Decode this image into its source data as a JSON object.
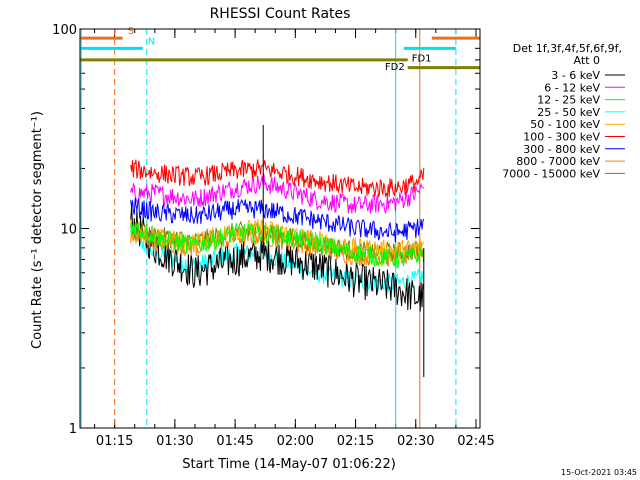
{
  "chart_data": {
    "type": "line",
    "title": "RHESSI Count Rates",
    "xlabel": "Start Time (14-May-07 01:06:22)",
    "ylabel": "Count Rate (s⁻¹ detector segment⁻¹)",
    "ylim": [
      1,
      100
    ],
    "yscale": "log",
    "xlim": [
      "01:06:22",
      "02:46:00"
    ],
    "x_ticks": [
      "01:15",
      "01:30",
      "01:45",
      "02:00",
      "02:15",
      "02:30",
      "02:45"
    ],
    "y_ticks": [
      "1",
      "10",
      "100"
    ],
    "legend_header": [
      "Det 1f,3f,4f,5f,6f,9f,",
      "Att 0"
    ],
    "legend_position": "right",
    "series": [
      {
        "name": "3 - 6 keV",
        "color": "#000000",
        "x": [
          "01:19",
          "01:25",
          "01:35",
          "01:45",
          "01:52",
          "02:05",
          "02:15",
          "02:25",
          "02:30",
          "02:32"
        ],
        "values": [
          11,
          8,
          6,
          7,
          7.5,
          6.5,
          5.5,
          5,
          4.5,
          4.5
        ]
      },
      {
        "name": "6 - 12 keV",
        "color": "#ff00ff",
        "x": [
          "01:19",
          "01:25",
          "01:35",
          "01:45",
          "01:52",
          "02:05",
          "02:15",
          "02:25",
          "02:30",
          "02:32"
        ],
        "values": [
          15,
          15,
          14,
          16,
          17,
          14,
          13,
          13.5,
          15,
          16
        ]
      },
      {
        "name": "12 - 25 keV",
        "color": "#00ff00",
        "x": [
          "01:19",
          "01:25",
          "01:35",
          "01:45",
          "01:52",
          "02:05",
          "02:15",
          "02:25",
          "02:30",
          "02:32"
        ],
        "values": [
          10.5,
          9,
          8.2,
          9.5,
          9.5,
          8.5,
          7.5,
          7,
          7.2,
          7.5
        ]
      },
      {
        "name": "25 - 50 keV",
        "color": "#00ffff",
        "x": [
          "01:19",
          "01:25",
          "01:35",
          "01:45",
          "01:52",
          "02:05",
          "02:15",
          "02:25",
          "02:30",
          "02:32"
        ],
        "values": [
          9.5,
          7.5,
          6.5,
          7.5,
          7.5,
          6,
          5.5,
          5.3,
          5.5,
          5.8
        ]
      },
      {
        "name": "50 - 100 keV",
        "color": "#ffaa00",
        "x": [
          "01:19",
          "01:25",
          "01:35",
          "01:45",
          "01:52",
          "02:05",
          "02:15",
          "02:25",
          "02:30",
          "02:32"
        ],
        "values": [
          10,
          9,
          8.5,
          9.8,
          10,
          8.8,
          8,
          7.8,
          8,
          8.3
        ]
      },
      {
        "name": "100 - 300 keV",
        "color": "#ff0000",
        "x": [
          "01:19",
          "01:25",
          "01:35",
          "01:45",
          "01:52",
          "02:05",
          "02:15",
          "02:25",
          "02:30",
          "02:32"
        ],
        "values": [
          20,
          19,
          18,
          19.5,
          20,
          17.5,
          16,
          16,
          17,
          18
        ]
      },
      {
        "name": "300 - 800 keV",
        "color": "#0000ff",
        "x": [
          "01:19",
          "01:25",
          "01:35",
          "01:45",
          "01:52",
          "02:05",
          "02:15",
          "02:25",
          "02:30",
          "02:32"
        ],
        "values": [
          13,
          12,
          11.5,
          12.5,
          12.5,
          11,
          10,
          9.5,
          10,
          10.5
        ]
      },
      {
        "name": "800 - 7000 keV",
        "color": "#ff8000",
        "x": [
          "01:19",
          "01:25",
          "01:35",
          "01:45",
          "01:52",
          "02:05",
          "02:15",
          "02:25",
          "02:30",
          "02:32"
        ],
        "values": [
          9.3,
          8.6,
          8,
          9,
          9.2,
          8,
          7.3,
          7.2,
          7.4,
          7.6
        ]
      },
      {
        "name": "7000 - 15000 keV",
        "color": "#808000",
        "x": [
          "01:19",
          "01:25",
          "01:35",
          "01:45",
          "01:52",
          "02:05",
          "02:15",
          "02:25",
          "02:30",
          "02:32"
        ],
        "values": [
          10,
          9.2,
          8.6,
          9.6,
          9.7,
          8.5,
          7.7,
          7.6,
          7.8,
          8
        ]
      }
    ],
    "spike": {
      "x": "01:52",
      "series_top": 33
    },
    "dip": {
      "x": "02:32",
      "series_bottom": 1.8
    },
    "attenuator_bars": [
      {
        "label": "S",
        "color": "#e87020",
        "y": 90,
        "x_start": "01:06:22",
        "x_end": "01:17"
      },
      {
        "label": "N",
        "color": "#00e0f0",
        "y": 80,
        "x_start": "01:06:22",
        "x_end": "01:22"
      },
      {
        "label": "FD1",
        "color": "#00e0f0",
        "y": 80,
        "x_start": "02:27",
        "x_end": "02:40"
      },
      {
        "label": "FD2",
        "color": "#808000",
        "y": 70,
        "x_start": "01:06:22",
        "x_end": "02:28"
      },
      {
        "label": "",
        "color": "#808000",
        "y": 64,
        "x_start": "02:28",
        "x_end": "02:46"
      },
      {
        "label": "",
        "color": "#e87020",
        "y": 90,
        "x_start": "02:34",
        "x_end": "02:46"
      }
    ],
    "vertical_markers": [
      {
        "x": "01:06:40",
        "color": "#00e0f0",
        "dashed": false
      },
      {
        "x": "01:15",
        "color": "#e87020",
        "dashed": true
      },
      {
        "x": "01:23",
        "color": "#00e0f0",
        "dashed": true
      },
      {
        "x": "02:25",
        "color": "#00e0f0",
        "dashed": false
      },
      {
        "x": "02:31",
        "color": "#e87020",
        "dashed": false
      },
      {
        "x": "02:40",
        "color": "#00e0f0",
        "dashed": true
      }
    ]
  },
  "footer": {
    "timestamp": "15-Oct-2021 03:45"
  }
}
